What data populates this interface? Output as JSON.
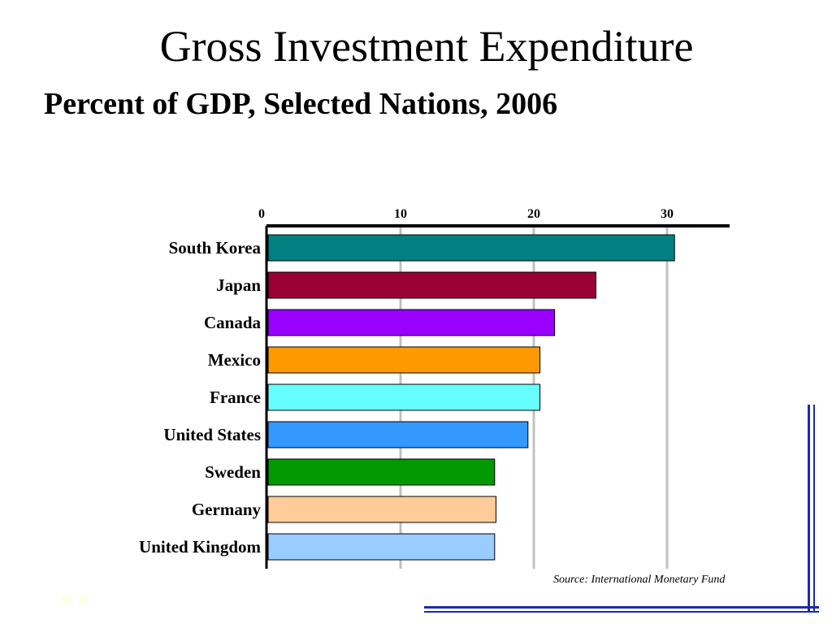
{
  "slide": {
    "title": "Gross Investment Expenditure",
    "subtitle": "Percent of GDP, Selected Nations, 2006",
    "source": "Source: International Monetary Fund",
    "slide_number": "9 - 17",
    "accent_color": "#1e2aa8"
  },
  "chart_data": {
    "type": "bar",
    "orientation": "horizontal",
    "title": "Gross Investment Expenditure",
    "subtitle": "Percent of GDP, Selected Nations, 2006",
    "categories": [
      "South Korea",
      "Japan",
      "Canada",
      "Mexico",
      "France",
      "United States",
      "Sweden",
      "Germany",
      "United Kingdom"
    ],
    "values": [
      30.5,
      24.6,
      21.5,
      20.4,
      20.4,
      19.5,
      17.0,
      17.1,
      17.0
    ],
    "colors": [
      "#008080",
      "#990033",
      "#9900ff",
      "#ff9900",
      "#66ffff",
      "#3399ff",
      "#009900",
      "#ffcc99",
      "#99ccff"
    ],
    "xticks": [
      0,
      10,
      20,
      30
    ],
    "xlim": [
      0,
      35
    ],
    "xlabel": "",
    "ylabel": "",
    "axis_position": "top",
    "grid": true,
    "legend": "none",
    "source": "Source: International Monetary Fund"
  }
}
